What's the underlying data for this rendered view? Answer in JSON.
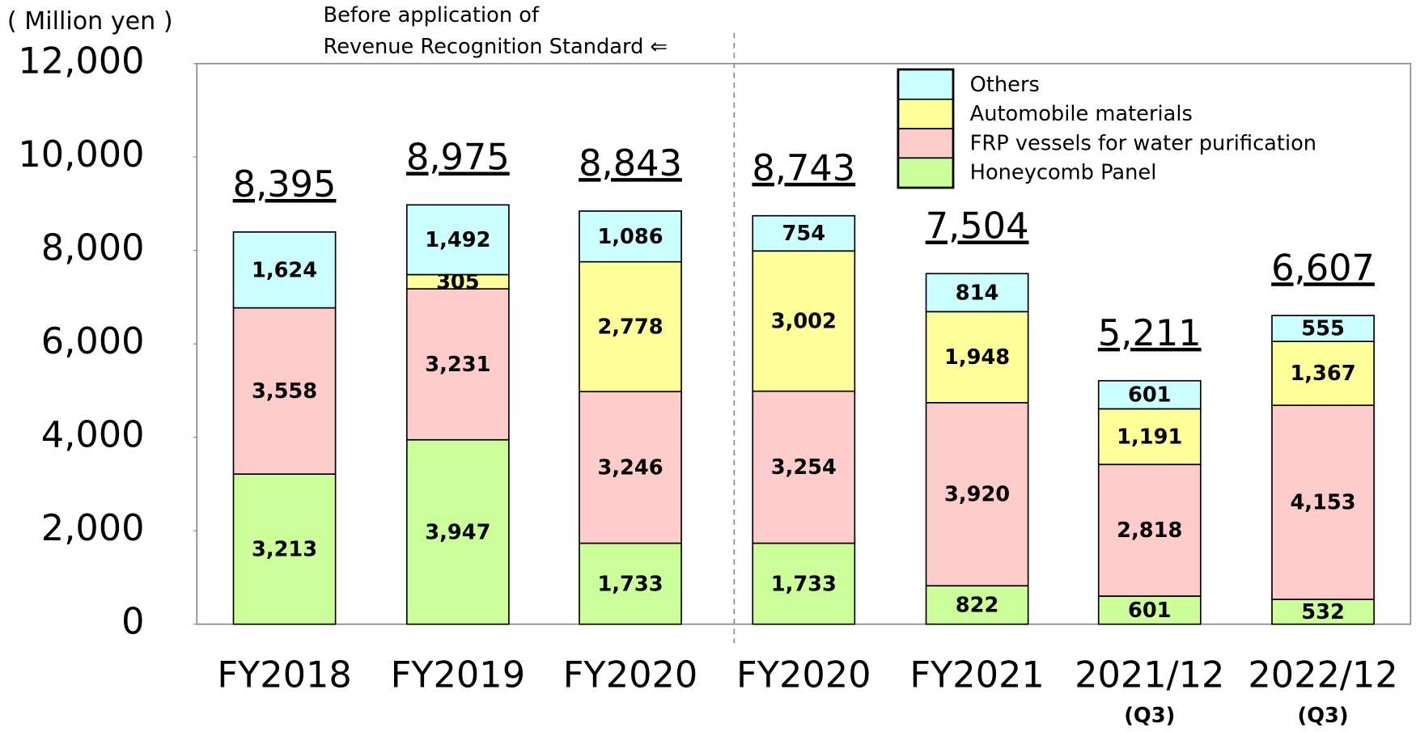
{
  "chart_data": {
    "type": "stacked-bar",
    "y_unit": "( Million yen )",
    "annotation": [
      "Before application of",
      "Revenue Recognition Standard ⇐"
    ],
    "categories": [
      "FY2018",
      "FY2019",
      "FY2020",
      "FY2020",
      "FY2021",
      "2021/12",
      "2022/12"
    ],
    "category_notes": [
      null,
      null,
      null,
      null,
      null,
      "(Q3)",
      "(Q3)"
    ],
    "series": [
      {
        "name": "Honeycomb  Panel",
        "color": "#ccff99",
        "values": [
          3213,
          3947,
          1733,
          1733,
          822,
          601,
          532
        ],
        "value_labels": [
          "3,213",
          "3,947",
          "1,733",
          "1,733",
          "822",
          "601",
          "532"
        ]
      },
      {
        "name": "FRP vessels for water purification",
        "color": "#ffcccc",
        "values": [
          3558,
          3231,
          3246,
          3254,
          3920,
          2818,
          4153
        ],
        "value_labels": [
          "3,558",
          "3,231",
          "3,246",
          "3,254",
          "3,920",
          "2,818",
          "4,153"
        ]
      },
      {
        "name": "Automobile materials",
        "color": "#ffff99",
        "values": [
          null,
          305,
          2778,
          3002,
          1948,
          1191,
          1367
        ],
        "value_labels": [
          null,
          "305",
          "2,778",
          "3,002",
          "1,948",
          "1,191",
          "1,367"
        ]
      },
      {
        "name": "Others",
        "color": "#ccffff",
        "values": [
          1624,
          1492,
          1086,
          754,
          814,
          601,
          555
        ],
        "value_labels": [
          "1,624",
          "1,492",
          "1,086",
          "754",
          "814",
          "601",
          "555"
        ]
      }
    ],
    "totals": [
      8395,
      8975,
      8843,
      8743,
      7504,
      5211,
      6607
    ],
    "total_labels": [
      "8,395",
      "8,975",
      "8,843",
      "8,743",
      "7,504",
      "5,211",
      "6,607"
    ],
    "ylim": [
      0,
      12000
    ],
    "yticks": [
      0,
      {
        "value": 2000,
        "label": "2,000"
      },
      {
        "value": 4000,
        "label": "4,000"
      },
      {
        "value": 6000,
        "label": "6,000"
      },
      {
        "value": 8000,
        "label": "8,000"
      },
      {
        "value": 10000,
        "label": "10,000"
      },
      {
        "value": 12000,
        "label": "12,000"
      }
    ]
  }
}
